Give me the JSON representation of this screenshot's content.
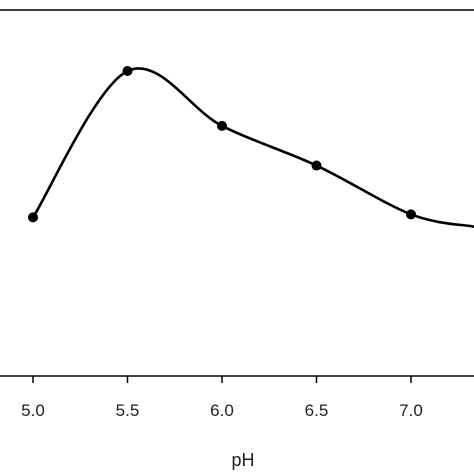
{
  "chart_data": {
    "type": "line",
    "xlabel": "pH",
    "ylabel": "",
    "title": "",
    "x_ticks": [
      "5.0",
      "5.5",
      "6.0",
      "6.5",
      "7.0"
    ],
    "xlim": [
      4.85,
      7.33
    ],
    "ylim": [
      0,
      1.2
    ],
    "series": [
      {
        "points": [
          {
            "x": 5.0,
            "y": 0.52
          },
          {
            "x": 5.5,
            "y": 1.0
          },
          {
            "x": 6.0,
            "y": 0.82
          },
          {
            "x": 6.5,
            "y": 0.69
          },
          {
            "x": 7.0,
            "y": 0.53
          },
          {
            "x": 7.33,
            "y": 0.49
          }
        ],
        "markers_count": 5
      }
    ],
    "grid": false,
    "legend": "none",
    "colors": {
      "line": "#000000",
      "axis": "#000000",
      "text": "#222222"
    }
  }
}
